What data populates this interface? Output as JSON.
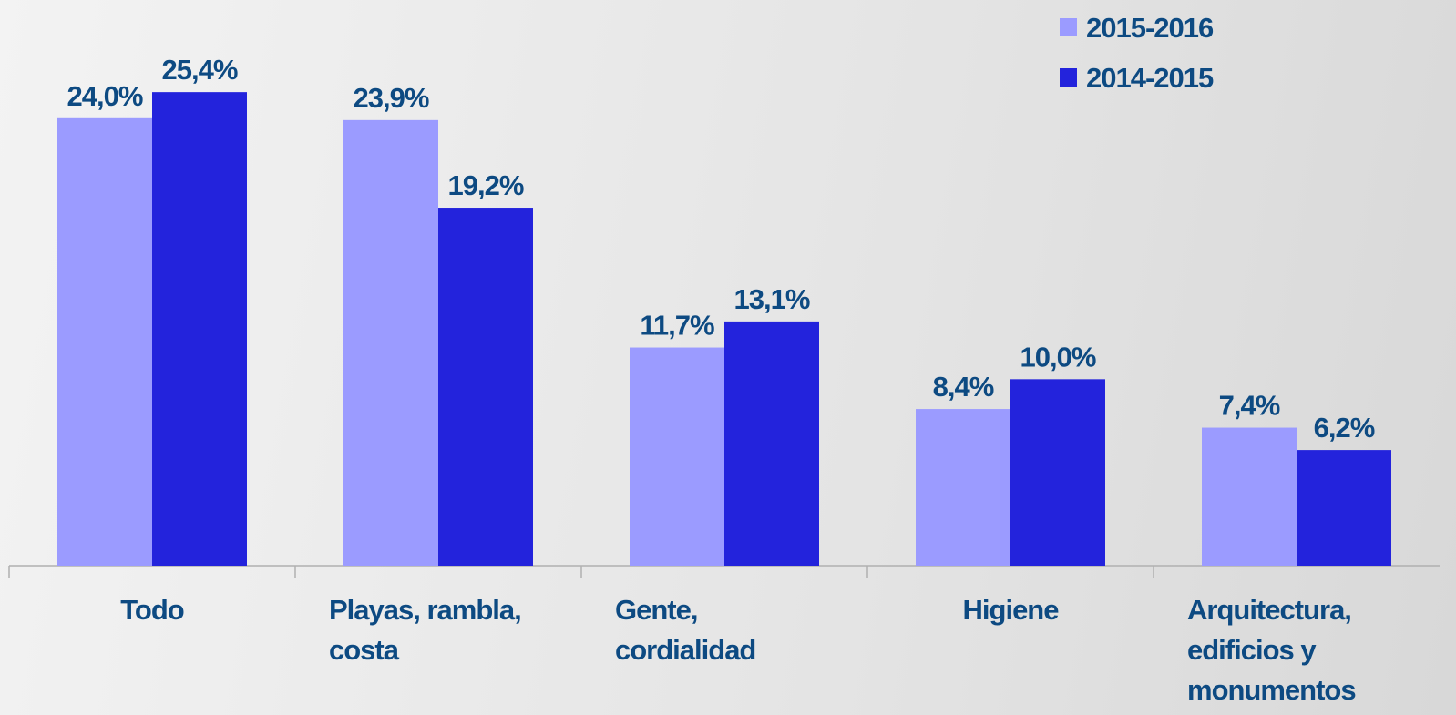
{
  "chart_data": {
    "type": "bar",
    "categories": [
      "Todo",
      "Playas, rambla, costa",
      "Gente, cordialidad",
      "Higiene",
      "Arquitectura, edificios y monumentos"
    ],
    "series": [
      {
        "name": "2015-2016",
        "color": "#9b9bff",
        "values": [
          24.0,
          23.9,
          11.7,
          8.4,
          7.4
        ],
        "value_labels": [
          "24,0%",
          "23,9%",
          "11,7%",
          "8,4%",
          "7,4%"
        ]
      },
      {
        "name": "2014-2015",
        "color": "#2323dc",
        "values": [
          25.4,
          19.2,
          13.1,
          10.0,
          6.2
        ],
        "value_labels": [
          "25,4%",
          "19,2%",
          "13,1%",
          "10,0%",
          "6,2%"
        ]
      }
    ],
    "ylim": [
      0,
      30
    ],
    "legend": "top-right"
  }
}
